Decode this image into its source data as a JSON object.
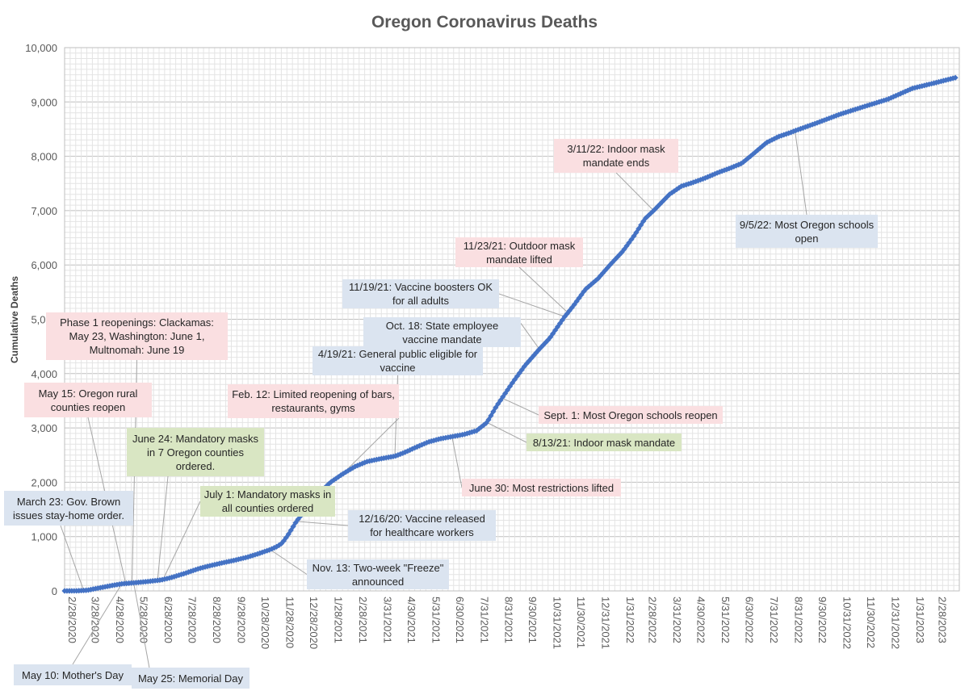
{
  "chart_data": {
    "type": "line",
    "title": "Oregon Coronavirus Deaths",
    "xlabel": "",
    "ylabel": "Cumulative Deaths",
    "ylim": [
      0,
      10000
    ],
    "yticks": [
      0,
      1000,
      2000,
      3000,
      4000,
      5000,
      6000,
      7000,
      8000,
      9000,
      10000
    ],
    "ytick_labels": [
      "0",
      "1,000",
      "2,000",
      "3,000",
      "4,000",
      "5,000",
      "6,000",
      "7,000",
      "8,000",
      "9,000",
      "10,000"
    ],
    "xlim": [
      "2020-02-28",
      "2023-03-31"
    ],
    "xtick_labels": [
      "2/28/2020",
      "3/28/2020",
      "4/28/2020",
      "5/28/2020",
      "6/28/2020",
      "7/28/2020",
      "8/28/2020",
      "9/28/2020",
      "10/28/2020",
      "11/28/2020",
      "12/28/2020",
      "1/28/2021",
      "2/28/2021",
      "3/31/2021",
      "4/30/2021",
      "5/31/2021",
      "6/30/2021",
      "7/31/2021",
      "8/31/2021",
      "9/30/2021",
      "10/31/2021",
      "11/30/2021",
      "12/31/2021",
      "1/31/2022",
      "2/28/2022",
      "3/31/2022",
      "4/30/2022",
      "5/31/2022",
      "6/30/2022",
      "7/31/2022",
      "8/31/2022",
      "9/30/2022",
      "10/31/2022",
      "11/30/2022",
      "12/31/2022",
      "1/31/2023",
      "2/28/2023"
    ],
    "grid": true,
    "series": [
      {
        "color": "#4472c4",
        "marker": "diamond",
        "points": [
          [
            "2020-02-28",
            0
          ],
          [
            "2020-03-14",
            1
          ],
          [
            "2020-03-28",
            13
          ],
          [
            "2020-04-10",
            50
          ],
          [
            "2020-04-28",
            100
          ],
          [
            "2020-05-10",
            130
          ],
          [
            "2020-05-25",
            148
          ],
          [
            "2020-06-10",
            170
          ],
          [
            "2020-06-28",
            200
          ],
          [
            "2020-07-10",
            240
          ],
          [
            "2020-07-28",
            320
          ],
          [
            "2020-08-15",
            410
          ],
          [
            "2020-08-28",
            460
          ],
          [
            "2020-09-15",
            520
          ],
          [
            "2020-09-28",
            560
          ],
          [
            "2020-10-15",
            620
          ],
          [
            "2020-10-28",
            680
          ],
          [
            "2020-11-13",
            760
          ],
          [
            "2020-11-22",
            820
          ],
          [
            "2020-11-28",
            880
          ],
          [
            "2020-12-05",
            1020
          ],
          [
            "2020-12-16",
            1280
          ],
          [
            "2020-12-28",
            1500
          ],
          [
            "2021-01-10",
            1750
          ],
          [
            "2021-01-28",
            2000
          ],
          [
            "2021-02-12",
            2150
          ],
          [
            "2021-02-28",
            2290
          ],
          [
            "2021-03-15",
            2380
          ],
          [
            "2021-03-31",
            2430
          ],
          [
            "2021-04-19",
            2480
          ],
          [
            "2021-04-30",
            2540
          ],
          [
            "2021-05-15",
            2640
          ],
          [
            "2021-05-31",
            2740
          ],
          [
            "2021-06-15",
            2800
          ],
          [
            "2021-06-30",
            2840
          ],
          [
            "2021-07-15",
            2880
          ],
          [
            "2021-07-31",
            2950
          ],
          [
            "2021-08-13",
            3100
          ],
          [
            "2021-08-25",
            3400
          ],
          [
            "2021-09-01",
            3550
          ],
          [
            "2021-09-15",
            3850
          ],
          [
            "2021-09-30",
            4150
          ],
          [
            "2021-10-18",
            4450
          ],
          [
            "2021-10-31",
            4650
          ],
          [
            "2021-11-19",
            5050
          ],
          [
            "2021-11-23",
            5120
          ],
          [
            "2021-11-30",
            5250
          ],
          [
            "2021-12-15",
            5550
          ],
          [
            "2021-12-31",
            5750
          ],
          [
            "2022-01-15",
            6000
          ],
          [
            "2022-01-31",
            6250
          ],
          [
            "2022-02-15",
            6550
          ],
          [
            "2022-02-28",
            6850
          ],
          [
            "2022-03-11",
            7000
          ],
          [
            "2022-03-31",
            7300
          ],
          [
            "2022-04-15",
            7450
          ],
          [
            "2022-04-30",
            7520
          ],
          [
            "2022-05-15",
            7600
          ],
          [
            "2022-05-31",
            7700
          ],
          [
            "2022-06-15",
            7780
          ],
          [
            "2022-06-30",
            7870
          ],
          [
            "2022-07-15",
            8050
          ],
          [
            "2022-07-31",
            8250
          ],
          [
            "2022-08-15",
            8360
          ],
          [
            "2022-08-31",
            8440
          ],
          [
            "2022-09-05",
            8470
          ],
          [
            "2022-09-30",
            8600
          ],
          [
            "2022-10-31",
            8770
          ],
          [
            "2022-11-30",
            8910
          ],
          [
            "2022-12-31",
            9050
          ],
          [
            "2023-01-31",
            9250
          ],
          [
            "2023-02-28",
            9350
          ],
          [
            "2023-03-27",
            9450
          ]
        ]
      }
    ],
    "annotations": [
      {
        "text": "March 23: Gov. Brown issues stay-home order.",
        "date": "2020-03-23",
        "color": "blue"
      },
      {
        "text": "May 10: Mother's Day",
        "date": "2020-05-10",
        "color": "blue"
      },
      {
        "text": "May 15: Oregon rural counties reopen",
        "date": "2020-05-15",
        "color": "pink"
      },
      {
        "text": "Phase 1 reopenings: Clackamas: May 23, Washington: June 1, Multnomah: June 19",
        "date": "2020-05-23",
        "color": "pink"
      },
      {
        "text": "May 25: Memorial Day",
        "date": "2020-05-25",
        "color": "blue"
      },
      {
        "text": "June 24: Mandatory masks in 7 Oregon counties ordered.",
        "date": "2020-06-24",
        "color": "green"
      },
      {
        "text": "July 1: Mandatory masks in all counties ordered",
        "date": "2020-07-01",
        "color": "green"
      },
      {
        "text": "Nov. 13: Two-week \"Freeze\" announced",
        "date": "2020-11-13",
        "color": "blue"
      },
      {
        "text": "12/16/20: Vaccine released for healthcare workers",
        "date": "2020-12-16",
        "color": "blue"
      },
      {
        "text": "Feb. 12: Limited reopening of bars, restaurants, gyms",
        "date": "2021-02-12",
        "color": "pink"
      },
      {
        "text": "4/19/21: General public eligible for vaccine",
        "date": "2021-04-19",
        "color": "blue"
      },
      {
        "text": "June 30: Most restrictions lifted",
        "date": "2021-06-30",
        "color": "pink"
      },
      {
        "text": "8/13/21: Indoor mask mandate",
        "date": "2021-08-13",
        "color": "green"
      },
      {
        "text": "Sept. 1: Most Oregon schools reopen",
        "date": "2021-09-01",
        "color": "pink"
      },
      {
        "text": "Oct. 18: State employee vaccine mandate",
        "date": "2021-10-18",
        "color": "blue"
      },
      {
        "text": "11/19/21: Vaccine boosters OK for all adults",
        "date": "2021-11-19",
        "color": "blue"
      },
      {
        "text": "11/23/21: Outdoor mask mandate lifted",
        "date": "2021-11-23",
        "color": "pink"
      },
      {
        "text": "3/11/22: Indoor mask mandate ends",
        "date": "2022-03-11",
        "color": "pink"
      },
      {
        "text": "9/5/22: Most Oregon schools open",
        "date": "2022-09-05",
        "color": "blue"
      }
    ]
  }
}
